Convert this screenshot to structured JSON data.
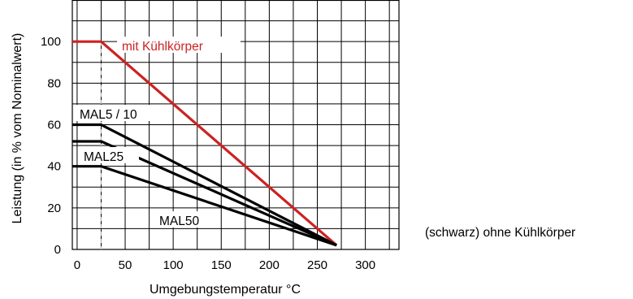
{
  "chart_data": {
    "type": "line",
    "xlabel": "Umgebungstemperatur °C",
    "ylabel": "Leistung (in % vom Nominalwert)",
    "xlim": [
      -5,
      335
    ],
    "ylim": [
      0,
      120
    ],
    "xticks": [
      0,
      50,
      100,
      150,
      200,
      250,
      300
    ],
    "yticks": [
      0,
      20,
      40,
      60,
      80,
      100
    ],
    "grid": true,
    "reference_line": {
      "x": 25,
      "style": "dashed"
    },
    "series": [
      {
        "name": "mit Kühlkörper",
        "color": "#cc2222",
        "x": [
          -5,
          25,
          270
        ],
        "y": [
          100,
          100,
          2
        ]
      },
      {
        "name": "MAL5 / 10",
        "color": "#000000",
        "x": [
          -5,
          25,
          270
        ],
        "y": [
          60,
          60,
          2
        ]
      },
      {
        "name": "MAL25",
        "color": "#000000",
        "x": [
          -5,
          25,
          270
        ],
        "y": [
          52,
          52,
          2
        ]
      },
      {
        "name": "MAL50",
        "color": "#000000",
        "x": [
          -5,
          25,
          270
        ],
        "y": [
          40,
          40,
          2
        ]
      }
    ],
    "annotation": "(schwarz) ohne Kühlkörper"
  }
}
